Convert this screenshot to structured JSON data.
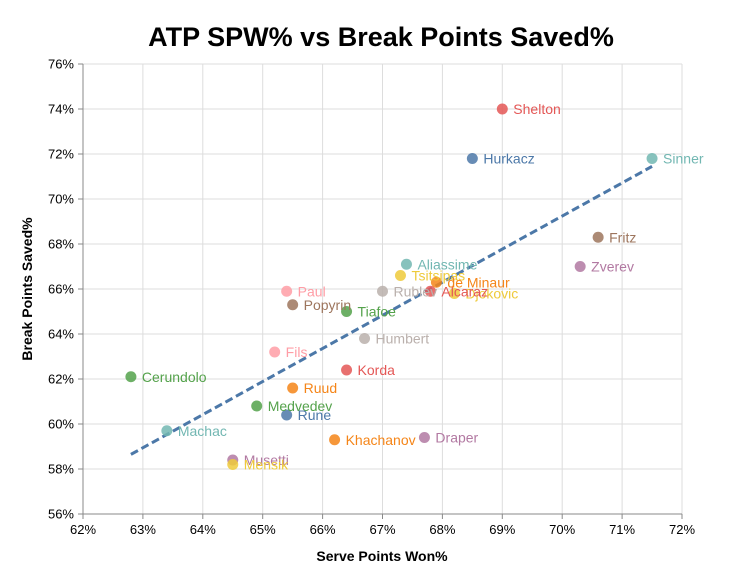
{
  "chart_data": {
    "type": "scatter",
    "title": "ATP SPW% vs Break Points Saved%",
    "xlabel": "Serve Points Won%",
    "ylabel": "Break Points Saved%",
    "xlim": [
      62,
      72
    ],
    "ylim": [
      56,
      76
    ],
    "x_ticks": [
      "62%",
      "63%",
      "64%",
      "65%",
      "66%",
      "67%",
      "68%",
      "69%",
      "70%",
      "71%",
      "72%"
    ],
    "y_ticks": [
      "56%",
      "58%",
      "60%",
      "62%",
      "64%",
      "66%",
      "68%",
      "70%",
      "72%",
      "74%",
      "76%"
    ],
    "grid": true,
    "trendline": {
      "x": [
        62.8,
        71.5
      ],
      "y": [
        58.65,
        71.45
      ],
      "color": "#4c78a8",
      "style": "dashed"
    },
    "points": [
      {
        "name": "Shelton",
        "x": 69.0,
        "y": 74.0,
        "color": "#e45756"
      },
      {
        "name": "Hurkacz",
        "x": 68.5,
        "y": 71.8,
        "color": "#4c78a8"
      },
      {
        "name": "Sinner",
        "x": 71.5,
        "y": 71.8,
        "color": "#72b7b2"
      },
      {
        "name": "Fritz",
        "x": 70.6,
        "y": 68.3,
        "color": "#9d755d"
      },
      {
        "name": "Zverev",
        "x": 70.3,
        "y": 67.0,
        "color": "#b279a2"
      },
      {
        "name": "Aliassime",
        "x": 67.4,
        "y": 67.1,
        "color": "#72b7b2"
      },
      {
        "name": "Tsitsipas",
        "x": 67.3,
        "y": 66.6,
        "color": "#eeca3b"
      },
      {
        "name": "Rublev",
        "x": 67.0,
        "y": 65.9,
        "color": "#bab0ac"
      },
      {
        "name": "Djokovic",
        "x": 68.2,
        "y": 65.8,
        "color": "#eeca3b"
      },
      {
        "name": "Alcaraz",
        "x": 67.8,
        "y": 65.9,
        "color": "#e45756"
      },
      {
        "name": "de Minaur",
        "x": 67.9,
        "y": 66.3,
        "color": "#f58518"
      },
      {
        "name": "Paul",
        "x": 65.4,
        "y": 65.9,
        "color": "#ff9da6"
      },
      {
        "name": "Popyrin",
        "x": 65.5,
        "y": 65.3,
        "color": "#9d755d"
      },
      {
        "name": "Tiafoe",
        "x": 66.4,
        "y": 65.0,
        "color": "#54a24b"
      },
      {
        "name": "Humbert",
        "x": 66.7,
        "y": 63.8,
        "color": "#bab0ac"
      },
      {
        "name": "Fils",
        "x": 65.2,
        "y": 63.2,
        "color": "#ff9da6"
      },
      {
        "name": "Korda",
        "x": 66.4,
        "y": 62.4,
        "color": "#e45756"
      },
      {
        "name": "Cerundolo",
        "x": 62.8,
        "y": 62.1,
        "color": "#54a24b"
      },
      {
        "name": "Ruud",
        "x": 65.5,
        "y": 61.6,
        "color": "#f58518"
      },
      {
        "name": "Medvedev",
        "x": 64.9,
        "y": 60.8,
        "color": "#54a24b"
      },
      {
        "name": "Rune",
        "x": 65.4,
        "y": 60.4,
        "color": "#4c78a8"
      },
      {
        "name": "Machac",
        "x": 63.4,
        "y": 59.7,
        "color": "#72b7b2"
      },
      {
        "name": "Khachanov",
        "x": 66.2,
        "y": 59.3,
        "color": "#f58518"
      },
      {
        "name": "Draper",
        "x": 67.7,
        "y": 59.4,
        "color": "#b279a2"
      },
      {
        "name": "Musetti",
        "x": 64.5,
        "y": 58.4,
        "color": "#b279a2"
      },
      {
        "name": "Mensik",
        "x": 64.5,
        "y": 58.2,
        "color": "#eeca3b"
      }
    ]
  }
}
